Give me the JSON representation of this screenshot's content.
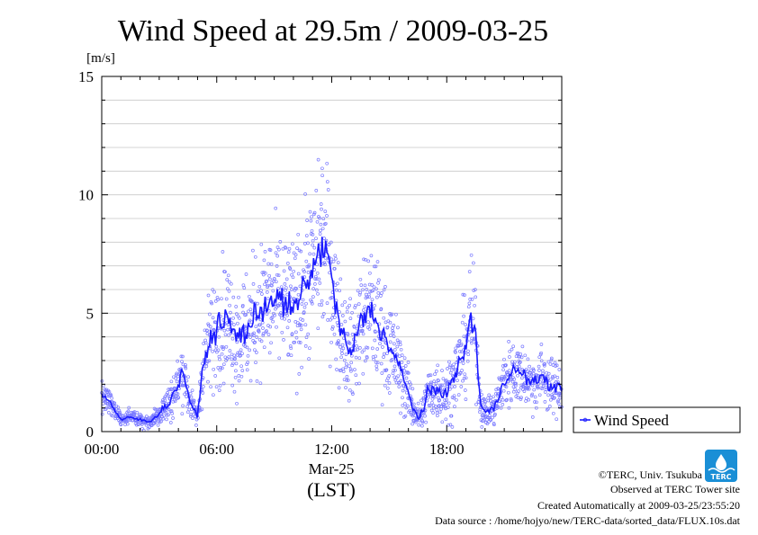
{
  "chart_data": {
    "type": "scatter",
    "title": "Wind Speed at 29.5m / 2009-03-25",
    "ylabel": "[m/s]",
    "xlabel": "(LST)",
    "date_label": "Mar-25",
    "x_ticks": [
      "00:00",
      "06:00",
      "12:00",
      "18:00"
    ],
    "x_range_hours": [
      0,
      24
    ],
    "ylim": [
      0,
      15
    ],
    "y_ticks": [
      0,
      5,
      10,
      15
    ],
    "grid": true,
    "legend_position": "right-bottom",
    "series": [
      {
        "name": "Wind Speed",
        "color": "#1a1aff",
        "point_color": "#7a7aff",
        "x_hours": [
          0,
          0.25,
          0.5,
          0.75,
          1,
          1.5,
          2,
          2.5,
          3,
          3.5,
          4,
          4.25,
          4.5,
          4.75,
          5,
          5.25,
          5.5,
          6,
          6.5,
          7,
          7.5,
          8,
          8.5,
          9,
          9.5,
          10,
          10.5,
          11,
          11.25,
          11.5,
          11.75,
          12,
          12.25,
          12.5,
          13,
          13.5,
          14,
          14.5,
          15,
          15.5,
          16,
          16.25,
          16.5,
          16.75,
          17,
          17.5,
          18,
          18.5,
          19,
          19.25,
          19.5,
          19.75,
          20,
          20.5,
          21,
          21.5,
          22,
          22.5,
          23,
          23.5,
          24
        ],
        "y_mean": [
          1.5,
          1.4,
          1.2,
          0.8,
          0.5,
          0.6,
          0.5,
          0.4,
          0.8,
          1.2,
          2.0,
          2.6,
          1.6,
          1.0,
          0.6,
          2.6,
          3.5,
          4.4,
          4.8,
          4.0,
          4.2,
          4.8,
          5.4,
          5.6,
          5.5,
          5.0,
          6.0,
          6.8,
          7.3,
          8.0,
          7.5,
          6.4,
          5.2,
          4.2,
          3.2,
          4.6,
          5.2,
          4.4,
          3.6,
          2.8,
          1.6,
          1.0,
          0.6,
          0.8,
          1.6,
          1.8,
          1.6,
          2.5,
          3.6,
          4.8,
          4.2,
          1.2,
          0.8,
          1.0,
          2.2,
          2.6,
          2.4,
          2.0,
          2.4,
          1.8,
          1.9
        ],
        "y_spread": [
          0.5,
          0.5,
          0.4,
          0.3,
          0.2,
          0.2,
          0.2,
          0.2,
          0.4,
          0.6,
          0.8,
          0.9,
          0.7,
          0.4,
          0.3,
          1.0,
          1.4,
          1.6,
          1.8,
          1.7,
          1.7,
          1.8,
          1.9,
          2.0,
          2.0,
          2.0,
          2.1,
          2.3,
          2.4,
          2.6,
          2.5,
          2.2,
          1.9,
          1.7,
          1.4,
          1.7,
          1.8,
          1.7,
          1.5,
          1.2,
          0.8,
          0.6,
          0.4,
          0.5,
          0.8,
          0.9,
          0.9,
          1.1,
          1.4,
          1.6,
          1.5,
          0.6,
          0.4,
          0.5,
          0.9,
          1.0,
          0.9,
          0.8,
          0.9,
          0.8,
          0.8
        ]
      }
    ]
  },
  "footer": {
    "copyright": "©TERC, Univ. Tsukuba",
    "observed": "Observed at TERC Tower site",
    "created": "Created Automatically at 2009-03-25/23:55:20",
    "source": "Data source : /home/hojyo/new/TERC-data/sorted_data/FLUX.10s.dat"
  },
  "logo": {
    "text": "TERC",
    "color": "#1a8fd6"
  }
}
